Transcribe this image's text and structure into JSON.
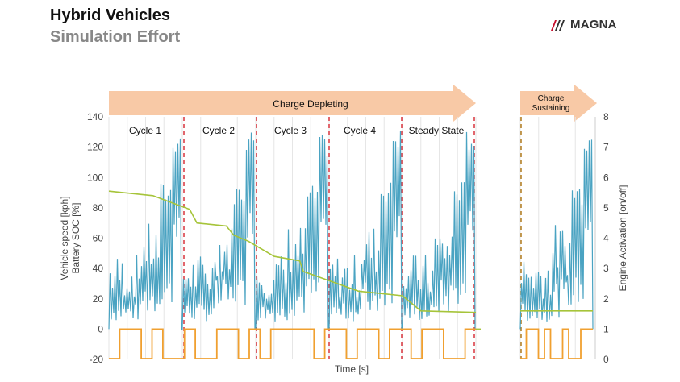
{
  "header": {
    "title": "Hybrid Vehicles",
    "subtitle": "Simulation Effort",
    "logo_text": "MAGNA"
  },
  "colors": {
    "speed": "#4aa3c2",
    "soc": "#a6c43a",
    "engine": "#f0a030",
    "divider": "#d9343d",
    "divider_cs": "#b07a1c",
    "arrow": "#f8c9a6"
  },
  "chart_data": {
    "type": "line",
    "xlabel": "Time [s]",
    "ylabel": "Vehicle speed [kph]\nBattery SOC [%]",
    "ylabel_right": "Engine Activation [on/off]",
    "ylim": [
      -20,
      140
    ],
    "ylim_right": [
      0,
      8
    ],
    "yticks": [
      "-20",
      "0",
      "20",
      "40",
      "60",
      "80",
      "100",
      "120",
      "140"
    ],
    "yticks_right": [
      "0",
      "1",
      "2",
      "3",
      "4",
      "5",
      "6",
      "7",
      "8"
    ],
    "grid": "vertical",
    "phases": [
      {
        "label": "Charge Depleting",
        "sublabel": ""
      },
      {
        "label": "Charge",
        "sublabel": "Sustaining"
      }
    ],
    "segments": [
      "Cycle 1",
      "Cycle 2",
      "Cycle 3",
      "Cycle 4",
      "Steady State"
    ],
    "series": [
      {
        "key": "speed",
        "cycle_peaks": [
          131,
          132,
          128,
          133,
          132,
          132
        ],
        "cycle_sub_peaks": [
          97,
          97,
          95,
          98,
          98,
          97
        ]
      },
      {
        "key": "soc",
        "x": [
          0,
          0.12,
          0.22,
          0.24,
          0.32,
          0.34,
          0.38,
          0.45,
          0.52,
          0.53,
          0.6,
          0.68,
          0.72,
          0.8,
          0.85,
          1.0,
          1.04,
          1.2
        ],
        "y": [
          91,
          88,
          79,
          70,
          68,
          62,
          58,
          48,
          45,
          38,
          32,
          25,
          24,
          22,
          12,
          11,
          12,
          12
        ]
      },
      {
        "key": "engine",
        "states": [
          0,
          1,
          1,
          0,
          1,
          0,
          0,
          1,
          0,
          0,
          1,
          1,
          0,
          1,
          0,
          1,
          1,
          1,
          1,
          0,
          1,
          1,
          0,
          1,
          1,
          0,
          1,
          1,
          0,
          1,
          1,
          0,
          0,
          1
        ]
      }
    ]
  }
}
